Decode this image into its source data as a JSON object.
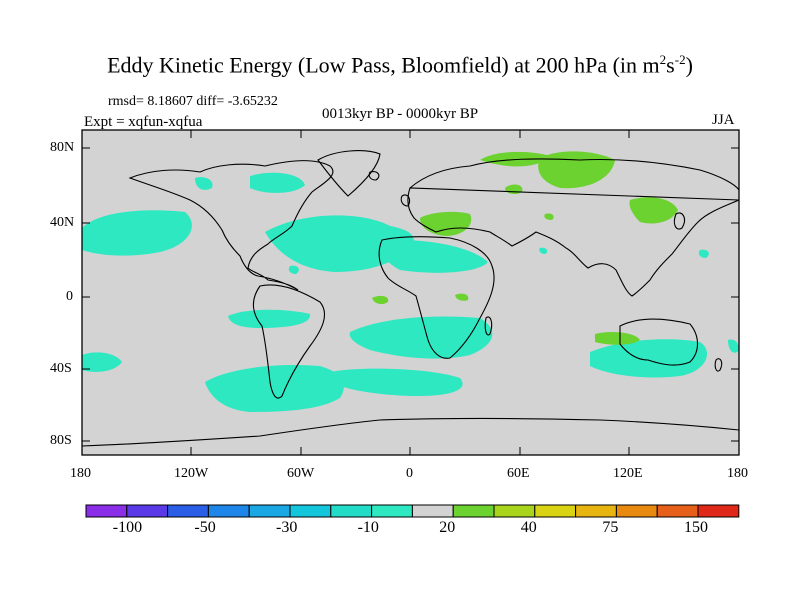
{
  "title": {
    "main": "Eddy Kinetic Energy (Low Pass, Bloomfield) at 200 hPa (in m",
    "exp1": "2",
    "mid": "s",
    "exp2": "-2",
    "close": ")"
  },
  "stats": "rmsd= 8.18607  diff= -3.65232",
  "experiment": "Expt = xqfun-xqfua",
  "period": "0013kyr BP - 0000kyr BP",
  "season": "JJA",
  "axes": {
    "lat_ticks": [
      "80N",
      "40N",
      "0",
      "40S",
      "80S"
    ],
    "lon_ticks": [
      "180",
      "120W",
      "60W",
      "0",
      "60E",
      "120E",
      "180"
    ]
  },
  "colors": {
    "background": "#d3d3d3",
    "negative_fill": "#2ee8c2",
    "positive_fill": "#6cd230",
    "coast": "#000000"
  },
  "colorbar": {
    "labels": [
      "-100",
      "-50",
      "-30",
      "-10",
      "20",
      "40",
      "75",
      "150"
    ],
    "colors": [
      "#8a2ee8",
      "#5a3ae6",
      "#2b5ee6",
      "#1d86e8",
      "#1aa8e4",
      "#14c6dc",
      "#22dcc8",
      "#2ee8c2",
      "#d3d3d3",
      "#6cd230",
      "#a8d41c",
      "#d8d414",
      "#e8b410",
      "#e88a10",
      "#e6601a",
      "#e02818"
    ]
  }
}
